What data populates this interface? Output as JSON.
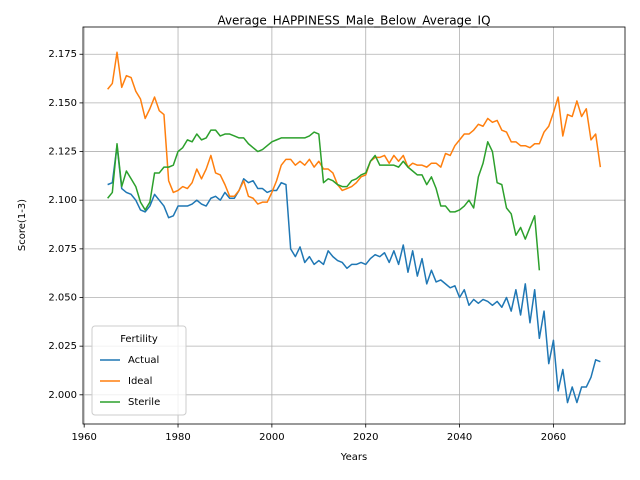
{
  "chart_data": {
    "type": "line",
    "title": "Average_HAPPINESS_Male_Below_Average_IQ",
    "x_label": "Years",
    "y_label": "Score(1-3)",
    "legend_title": "Fertility",
    "legend": "lower left",
    "grid": true,
    "x": [
      1965,
      1966,
      1967,
      1968,
      1969,
      1970,
      1971,
      1972,
      1973,
      1974,
      1975,
      1976,
      1977,
      1978,
      1979,
      1980,
      1981,
      1982,
      1983,
      1984,
      1985,
      1986,
      1987,
      1988,
      1989,
      1990,
      1991,
      1992,
      1993,
      1994,
      1995,
      1996,
      1997,
      1998,
      1999,
      2000,
      2001,
      2002,
      2003,
      2004,
      2005,
      2006,
      2007,
      2008,
      2009,
      2010,
      2011,
      2012,
      2013,
      2014,
      2015,
      2016,
      2017,
      2018,
      2019,
      2020,
      2021,
      2022,
      2023,
      2024,
      2025,
      2026,
      2027,
      2028,
      2029,
      2030,
      2031,
      2032,
      2033,
      2034,
      2035,
      2036,
      2037,
      2038,
      2039,
      2040,
      2041,
      2042,
      2043,
      2044,
      2045,
      2046,
      2047,
      2048,
      2049,
      2050,
      2051,
      2052,
      2053,
      2054,
      2055,
      2056,
      2057,
      2058,
      2059,
      2060,
      2061,
      2062,
      2063,
      2064,
      2065,
      2066,
      2067,
      2068,
      2069,
      2070
    ],
    "series": [
      {
        "name": "Actual",
        "color": "#1f77b4",
        "values": [
          2.108,
          2.109,
          2.128,
          2.106,
          2.104,
          2.103,
          2.1,
          2.095,
          2.094,
          2.097,
          2.103,
          2.1,
          2.097,
          2.091,
          2.092,
          2.097,
          2.097,
          2.097,
          2.098,
          2.1,
          2.098,
          2.097,
          2.101,
          2.102,
          2.1,
          2.104,
          2.101,
          2.101,
          2.105,
          2.111,
          2.109,
          2.11,
          2.106,
          2.106,
          2.104,
          2.105,
          2.105,
          2.109,
          2.108,
          2.075,
          2.071,
          2.076,
          2.068,
          2.071,
          2.067,
          2.069,
          2.067,
          2.074,
          2.071,
          2.069,
          2.068,
          2.065,
          2.067,
          2.067,
          2.068,
          2.067,
          2.07,
          2.072,
          2.071,
          2.073,
          2.068,
          2.074,
          2.067,
          2.077,
          2.063,
          2.074,
          2.061,
          2.07,
          2.057,
          2.064,
          2.058,
          2.059,
          2.057,
          2.055,
          2.056,
          2.05,
          2.054,
          2.046,
          2.049,
          2.047,
          2.049,
          2.048,
          2.046,
          2.048,
          2.045,
          2.05,
          2.043,
          2.054,
          2.041,
          2.057,
          2.037,
          2.054,
          2.029,
          2.043,
          2.016,
          2.028,
          2.002,
          2.013,
          1.996,
          2.004,
          1.996,
          2.004,
          2.004,
          2.009,
          2.018,
          2.017
        ]
      },
      {
        "name": "Ideal",
        "color": "#ff7f0e",
        "values": [
          2.157,
          2.16,
          2.176,
          2.158,
          2.164,
          2.163,
          2.156,
          2.152,
          2.142,
          2.147,
          2.153,
          2.146,
          2.144,
          2.11,
          2.104,
          2.105,
          2.107,
          2.106,
          2.109,
          2.116,
          2.111,
          2.116,
          2.123,
          2.114,
          2.113,
          2.108,
          2.102,
          2.102,
          2.105,
          2.11,
          2.102,
          2.101,
          2.098,
          2.099,
          2.099,
          2.104,
          2.11,
          2.118,
          2.121,
          2.121,
          2.118,
          2.12,
          2.118,
          2.121,
          2.117,
          2.12,
          2.116,
          2.116,
          2.114,
          2.108,
          2.105,
          2.106,
          2.107,
          2.109,
          2.112,
          2.113,
          2.12,
          2.122,
          2.122,
          2.123,
          2.119,
          2.123,
          2.12,
          2.123,
          2.117,
          2.119,
          2.118,
          2.118,
          2.117,
          2.119,
          2.119,
          2.117,
          2.124,
          2.123,
          2.128,
          2.131,
          2.134,
          2.134,
          2.136,
          2.139,
          2.138,
          2.142,
          2.14,
          2.141,
          2.136,
          2.135,
          2.13,
          2.13,
          2.128,
          2.128,
          2.127,
          2.129,
          2.129,
          2.135,
          2.138,
          2.145,
          2.153,
          2.133,
          2.144,
          2.143,
          2.151,
          2.143,
          2.147,
          2.131,
          2.134,
          2.117
        ]
      },
      {
        "name": "Sterile",
        "color": "#2ca02c",
        "values": [
          2.101,
          2.104,
          2.129,
          2.107,
          2.115,
          2.111,
          2.107,
          2.099,
          2.095,
          2.099,
          2.114,
          2.114,
          2.117,
          2.117,
          2.118,
          2.125,
          2.127,
          2.131,
          2.13,
          2.134,
          2.131,
          2.132,
          2.136,
          2.136,
          2.133,
          2.134,
          2.134,
          2.133,
          2.132,
          2.132,
          2.129,
          2.127,
          2.125,
          2.126,
          2.128,
          2.13,
          2.131,
          2.132,
          2.132,
          2.132,
          2.132,
          2.132,
          2.132,
          2.133,
          2.135,
          2.134,
          2.109,
          2.111,
          2.11,
          2.108,
          2.107,
          2.107,
          2.11,
          2.111,
          2.113,
          2.114,
          2.12,
          2.123,
          2.118,
          2.118,
          2.118,
          2.118,
          2.117,
          2.12,
          2.117,
          2.115,
          2.113,
          2.113,
          2.108,
          2.112,
          2.106,
          2.097,
          2.097,
          2.094,
          2.094,
          2.095,
          2.097,
          2.1,
          2.096,
          2.112,
          2.119,
          2.13,
          2.125,
          2.109,
          2.108,
          2.096,
          2.093,
          2.082,
          2.086,
          2.08,
          2.086,
          2.092,
          2.064,
          null,
          null,
          null,
          null,
          null,
          null,
          null,
          null,
          null,
          null,
          null,
          null,
          null
        ]
      }
    ],
    "xlim": [
      1959.75,
      2075.25
    ],
    "xticks": [
      1960,
      1980,
      2000,
      2020,
      2040,
      2060
    ],
    "ylim": [
      1.985,
      2.189
    ],
    "yticks": [
      {
        "value": 2,
        "label": "2.000"
      },
      2.025,
      {
        "value": 2.05,
        "label": "2.050"
      },
      2.075,
      {
        "value": 2.1,
        "label": "2.100"
      },
      2.125,
      {
        "value": 2.15,
        "label": "2.150"
      },
      2.175
    ]
  }
}
